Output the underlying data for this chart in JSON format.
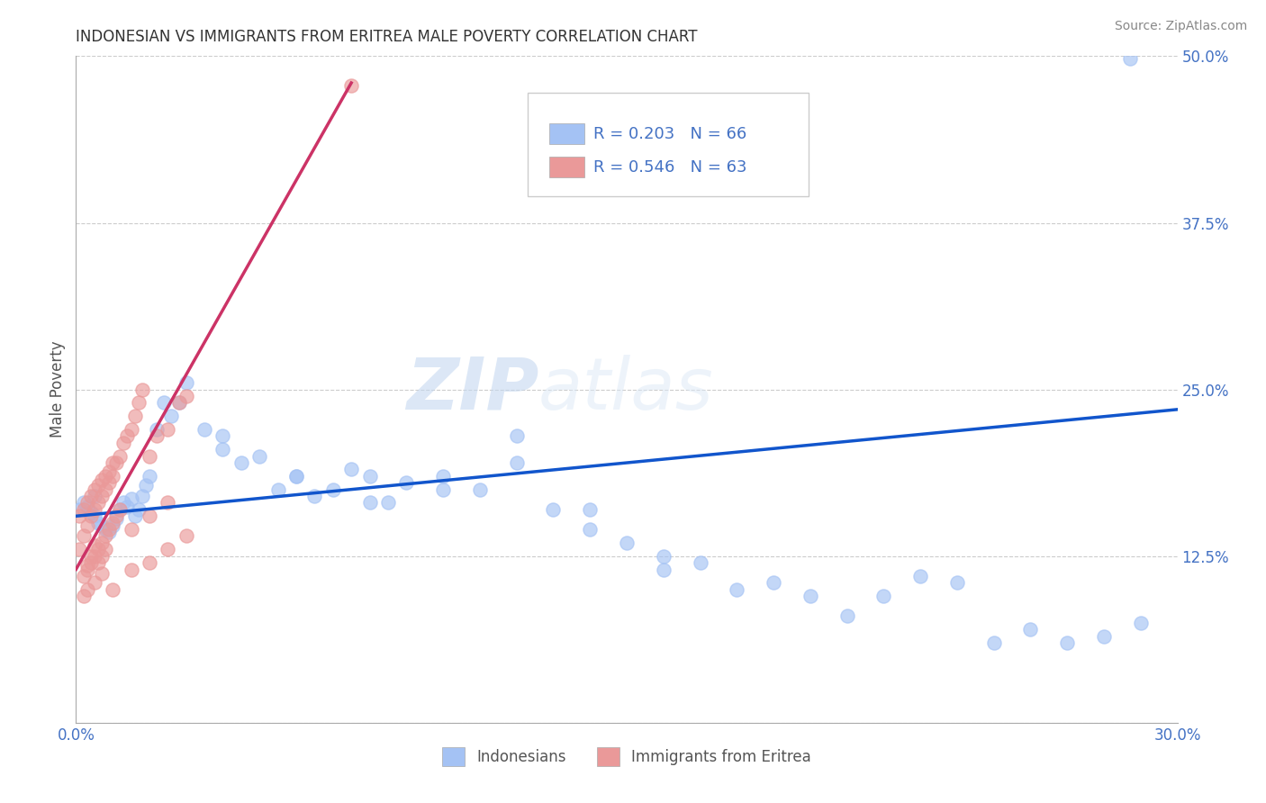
{
  "title": "INDONESIAN VS IMMIGRANTS FROM ERITREA MALE POVERTY CORRELATION CHART",
  "source": "Source: ZipAtlas.com",
  "ylabel": "Male Poverty",
  "x_min": 0.0,
  "x_max": 0.3,
  "y_min": 0.0,
  "y_max": 0.5,
  "y_ticks": [
    0.0,
    0.125,
    0.25,
    0.375,
    0.5
  ],
  "y_tick_labels": [
    "",
    "12.5%",
    "25.0%",
    "37.5%",
    "50.0%"
  ],
  "blue_R": 0.203,
  "blue_N": 66,
  "pink_R": 0.546,
  "pink_N": 63,
  "blue_color": "#a4c2f4",
  "pink_color": "#ea9999",
  "blue_line_color": "#1155cc",
  "pink_line_color": "#cc3366",
  "legend_label_blue": "Indonesians",
  "legend_label_pink": "Immigrants from Eritrea",
  "watermark_zip": "ZIP",
  "watermark_atlas": "atlas",
  "blue_trend_x0": 0.0,
  "blue_trend_y0": 0.155,
  "blue_trend_x1": 0.3,
  "blue_trend_y1": 0.235,
  "pink_trend_x0": 0.0,
  "pink_trend_y0": 0.115,
  "pink_trend_x1": 0.075,
  "pink_trend_y1": 0.48,
  "indonesian_x": [
    0.001,
    0.002,
    0.003,
    0.004,
    0.005,
    0.005,
    0.006,
    0.007,
    0.008,
    0.009,
    0.01,
    0.011,
    0.012,
    0.013,
    0.014,
    0.015,
    0.016,
    0.017,
    0.018,
    0.019,
    0.02,
    0.022,
    0.024,
    0.026,
    0.028,
    0.03,
    0.035,
    0.04,
    0.045,
    0.05,
    0.055,
    0.06,
    0.065,
    0.07,
    0.075,
    0.08,
    0.085,
    0.09,
    0.1,
    0.11,
    0.12,
    0.13,
    0.14,
    0.15,
    0.16,
    0.17,
    0.18,
    0.19,
    0.2,
    0.21,
    0.22,
    0.23,
    0.24,
    0.25,
    0.26,
    0.27,
    0.28,
    0.29,
    0.04,
    0.06,
    0.08,
    0.1,
    0.12,
    0.14,
    0.16,
    0.287
  ],
  "indonesian_y": [
    0.16,
    0.165,
    0.162,
    0.158,
    0.155,
    0.17,
    0.15,
    0.148,
    0.145,
    0.143,
    0.148,
    0.153,
    0.16,
    0.165,
    0.162,
    0.168,
    0.155,
    0.16,
    0.17,
    0.178,
    0.185,
    0.22,
    0.24,
    0.23,
    0.24,
    0.255,
    0.22,
    0.215,
    0.195,
    0.2,
    0.175,
    0.185,
    0.17,
    0.175,
    0.19,
    0.185,
    0.165,
    0.18,
    0.185,
    0.175,
    0.195,
    0.16,
    0.145,
    0.135,
    0.125,
    0.12,
    0.1,
    0.105,
    0.095,
    0.08,
    0.095,
    0.11,
    0.105,
    0.06,
    0.07,
    0.06,
    0.065,
    0.075,
    0.205,
    0.185,
    0.165,
    0.175,
    0.215,
    0.16,
    0.115,
    0.498
  ],
  "eritrean_x": [
    0.001,
    0.001,
    0.002,
    0.002,
    0.003,
    0.003,
    0.004,
    0.004,
    0.005,
    0.005,
    0.006,
    0.006,
    0.007,
    0.007,
    0.008,
    0.008,
    0.009,
    0.009,
    0.01,
    0.01,
    0.011,
    0.012,
    0.013,
    0.014,
    0.015,
    0.016,
    0.017,
    0.018,
    0.02,
    0.022,
    0.025,
    0.028,
    0.03,
    0.003,
    0.004,
    0.005,
    0.006,
    0.007,
    0.008,
    0.009,
    0.01,
    0.011,
    0.012,
    0.002,
    0.003,
    0.004,
    0.005,
    0.006,
    0.007,
    0.008,
    0.015,
    0.02,
    0.025,
    0.002,
    0.003,
    0.005,
    0.007,
    0.01,
    0.015,
    0.02,
    0.025,
    0.03,
    0.075
  ],
  "eritrean_y": [
    0.13,
    0.155,
    0.14,
    0.16,
    0.148,
    0.165,
    0.155,
    0.17,
    0.16,
    0.175,
    0.165,
    0.178,
    0.17,
    0.182,
    0.175,
    0.185,
    0.18,
    0.188,
    0.185,
    0.195,
    0.195,
    0.2,
    0.21,
    0.215,
    0.22,
    0.23,
    0.24,
    0.25,
    0.2,
    0.215,
    0.22,
    0.24,
    0.245,
    0.115,
    0.12,
    0.125,
    0.13,
    0.135,
    0.14,
    0.145,
    0.15,
    0.155,
    0.16,
    0.11,
    0.118,
    0.125,
    0.133,
    0.12,
    0.125,
    0.13,
    0.145,
    0.155,
    0.165,
    0.095,
    0.1,
    0.105,
    0.112,
    0.1,
    0.115,
    0.12,
    0.13,
    0.14,
    0.478
  ]
}
